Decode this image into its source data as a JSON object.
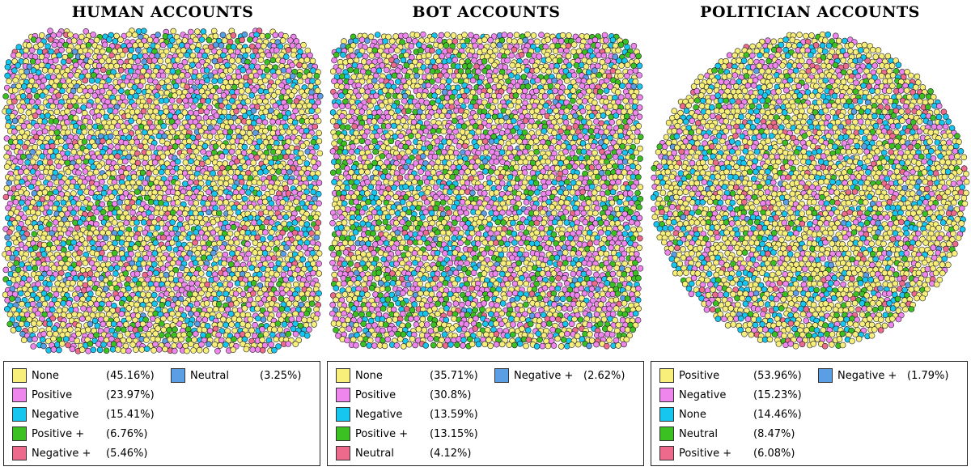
{
  "colors": {
    "yellow": "#f7ef7a",
    "pink": "#ee86ee",
    "cyan": "#17c6ee",
    "green": "#3cc123",
    "red": "#ee6a8d",
    "blue": "#5a9fe6"
  },
  "panels": [
    {
      "title": "HUMAN ACCOUNTS",
      "shape": "rounded-square",
      "legend": [
        {
          "label": "None",
          "pct": "(45.16%)",
          "color": "yellow",
          "value": 45.16
        },
        {
          "label": "Positive",
          "pct": "(23.97%)",
          "color": "pink",
          "value": 23.97
        },
        {
          "label": "Negative",
          "pct": "(15.41%)",
          "color": "cyan",
          "value": 15.41
        },
        {
          "label": "Positive +",
          "pct": "(6.76%)",
          "color": "green",
          "value": 6.76
        },
        {
          "label": "Negative +",
          "pct": "(5.46%)",
          "color": "red",
          "value": 5.46
        },
        {
          "label": "Neutral",
          "pct": "(3.25%)",
          "color": "blue",
          "value": 3.25
        }
      ]
    },
    {
      "title": "BOT ACCOUNTS",
      "shape": "rounded-rectangle",
      "legend": [
        {
          "label": "None",
          "pct": "(35.71%)",
          "color": "yellow",
          "value": 35.71
        },
        {
          "label": "Positive",
          "pct": "(30.8%)",
          "color": "pink",
          "value": 30.8
        },
        {
          "label": "Negative",
          "pct": "(13.59%)",
          "color": "cyan",
          "value": 13.59
        },
        {
          "label": "Positive +",
          "pct": "(13.15%)",
          "color": "green",
          "value": 13.15
        },
        {
          "label": "Neutral",
          "pct": "(4.12%)",
          "color": "red",
          "value": 4.12
        },
        {
          "label": "Negative +",
          "pct": "(2.62%)",
          "color": "blue",
          "value": 2.62
        }
      ]
    },
    {
      "title": "POLITICIAN ACCOUNTS",
      "shape": "circle",
      "legend": [
        {
          "label": "Positive",
          "pct": "(53.96%)",
          "color": "yellow",
          "value": 53.96
        },
        {
          "label": "Negative",
          "pct": "(15.23%)",
          "color": "pink",
          "value": 15.23
        },
        {
          "label": "None",
          "pct": "(14.46%)",
          "color": "cyan",
          "value": 14.46
        },
        {
          "label": "Neutral",
          "pct": "(8.47%)",
          "color": "green",
          "value": 8.47
        },
        {
          "label": "Positive +",
          "pct": "(6.08%)",
          "color": "red",
          "value": 6.08
        },
        {
          "label": "Negative +",
          "pct": "(1.79%)",
          "color": "blue",
          "value": 1.79
        }
      ]
    }
  ]
}
